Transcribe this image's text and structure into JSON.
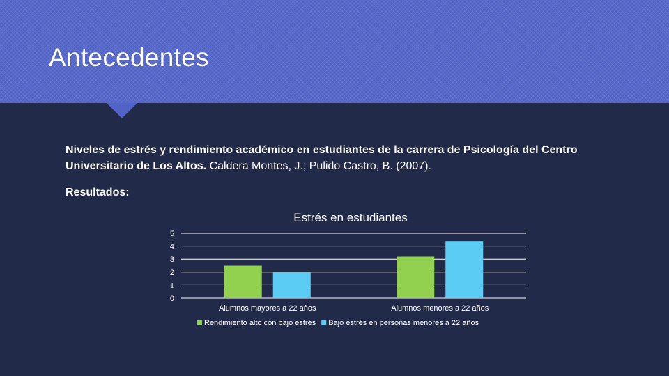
{
  "slide": {
    "title": "Antecedentes",
    "citation_title": "Niveles de estrés y rendimiento académico en estudiantes de la carrera de Psicología del Centro Universitario de Los Altos.",
    "citation_authors": " Caldera Montes, J.; Pulido Castro, B. (2007).",
    "results_label": "Resultados:"
  },
  "colors": {
    "header": "#5163c6",
    "background": "#222a49",
    "series1": "#92d050",
    "series2": "#5bcdf5"
  },
  "chart_data": {
    "type": "bar",
    "title": "Estrés en estudiantes",
    "categories": [
      "Alumnos mayores a 22 años",
      "Alumnos menores a 22 años"
    ],
    "series": [
      {
        "name": "Rendimiento  alto con bajo estrés",
        "values": [
          2.5,
          3.2
        ]
      },
      {
        "name": "Bajo estrés en personas menores a 22 años",
        "values": [
          2.0,
          4.4
        ]
      }
    ],
    "yticks": [
      0,
      1,
      2,
      3,
      4,
      5
    ],
    "ylim": [
      0,
      5
    ],
    "xlabel": "",
    "ylabel": "",
    "grid": true,
    "legend": "bottom"
  }
}
